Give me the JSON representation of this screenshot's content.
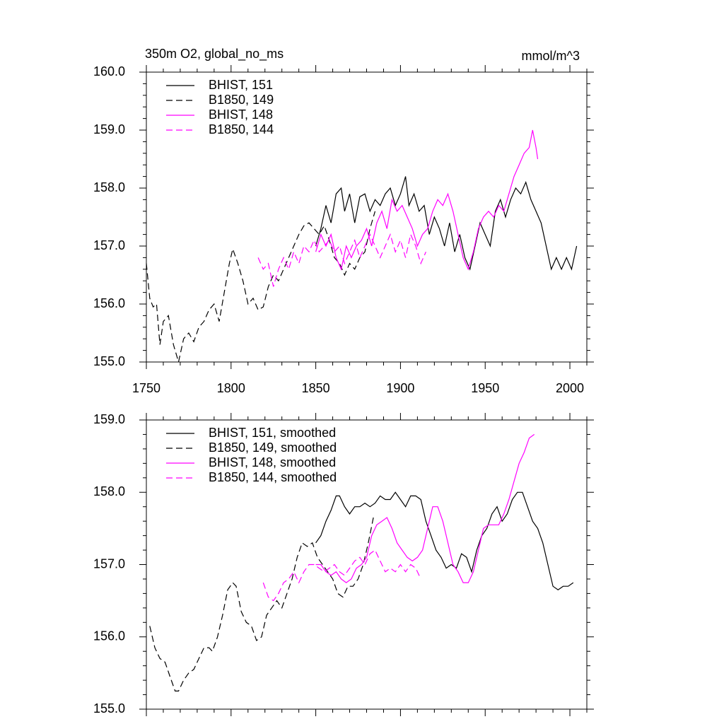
{
  "chart_data": [
    {
      "type": "line",
      "title": "350m O2, global_no_ms",
      "y_units": "mmol/m^3",
      "xlim": [
        1750,
        2010
      ],
      "xticks": [
        1750,
        1800,
        1850,
        1900,
        1950,
        2000
      ],
      "show_xtick_labels": true,
      "ylim": [
        155,
        160
      ],
      "yticks": [
        {
          "value": 155,
          "label": "155.0"
        },
        {
          "value": 156,
          "label": "156.0"
        },
        {
          "value": 157,
          "label": "157.0"
        },
        {
          "value": 158,
          "label": "158.0"
        },
        {
          "value": 159,
          "label": "159.0"
        },
        {
          "value": 160,
          "label": "160.0"
        }
      ],
      "legend": "upper left",
      "series": [
        {
          "name": "BHIST, 151",
          "color": "black",
          "line_style": "solid",
          "x": [
            1850,
            1853,
            1856,
            1859,
            1862,
            1865,
            1867,
            1870,
            1873,
            1876,
            1879,
            1882,
            1885,
            1888,
            1891,
            1894,
            1897,
            1900,
            1903,
            1905,
            1908,
            1911,
            1914,
            1917,
            1920,
            1923,
            1926,
            1929,
            1932,
            1935,
            1938,
            1941,
            1944,
            1947,
            1950,
            1953,
            1956,
            1959,
            1962,
            1965,
            1968,
            1971,
            1974,
            1977,
            1980,
            1983,
            1986,
            1989,
            1992,
            1995,
            1998,
            2001,
            2004
          ],
          "values": [
            157.0,
            157.3,
            157.7,
            157.4,
            157.9,
            158.0,
            157.6,
            157.9,
            157.4,
            157.85,
            157.9,
            157.6,
            157.8,
            157.7,
            157.9,
            158.0,
            157.7,
            157.9,
            158.2,
            157.7,
            157.9,
            157.6,
            157.7,
            157.2,
            157.5,
            157.3,
            157.0,
            157.4,
            156.9,
            157.2,
            156.8,
            156.6,
            157.0,
            157.4,
            157.2,
            157.0,
            157.6,
            157.8,
            157.5,
            157.8,
            158.0,
            157.9,
            158.1,
            157.8,
            157.6,
            157.4,
            157.0,
            156.6,
            156.8,
            156.6,
            156.8,
            156.6,
            157.0
          ]
        },
        {
          "name": "B1850, 149",
          "color": "black",
          "line_style": "dashed",
          "x": [
            1750,
            1752,
            1754,
            1756,
            1758,
            1760,
            1763,
            1766,
            1769,
            1772,
            1775,
            1778,
            1781,
            1784,
            1787,
            1790,
            1793,
            1796,
            1799,
            1801,
            1804,
            1807,
            1810,
            1813,
            1816,
            1819,
            1822,
            1825,
            1828,
            1831,
            1834,
            1837,
            1840,
            1843,
            1846,
            1849,
            1852,
            1855,
            1858,
            1861,
            1864,
            1867,
            1870,
            1873,
            1876,
            1879,
            1882,
            1885
          ],
          "values": [
            156.7,
            156.1,
            155.95,
            156.0,
            155.3,
            155.7,
            155.8,
            155.3,
            155.0,
            155.4,
            155.5,
            155.35,
            155.6,
            155.7,
            155.9,
            156.0,
            155.7,
            156.2,
            156.7,
            156.95,
            156.7,
            156.4,
            156.0,
            156.1,
            155.9,
            155.95,
            156.3,
            156.5,
            156.4,
            156.6,
            156.8,
            157.0,
            157.2,
            157.35,
            157.4,
            157.3,
            157.2,
            157.35,
            157.1,
            156.8,
            156.7,
            156.5,
            156.7,
            156.6,
            156.8,
            156.9,
            157.3,
            157.6
          ]
        },
        {
          "name": "BHIST, 148",
          "color": "magenta",
          "line_style": "solid",
          "x": [
            1850,
            1853,
            1856,
            1859,
            1862,
            1865,
            1868,
            1871,
            1874,
            1877,
            1880,
            1883,
            1886,
            1889,
            1892,
            1895,
            1898,
            1901,
            1904,
            1907,
            1910,
            1913,
            1916,
            1919,
            1922,
            1925,
            1928,
            1931,
            1934,
            1937,
            1940,
            1943,
            1946,
            1949,
            1952,
            1955,
            1958,
            1961,
            1964,
            1967,
            1970,
            1973,
            1976,
            1978,
            1980,
            1981
          ],
          "values": [
            156.9,
            157.2,
            157.0,
            157.2,
            156.8,
            156.6,
            157.0,
            156.8,
            157.0,
            157.1,
            157.3,
            157.0,
            157.4,
            157.6,
            157.3,
            157.8,
            157.6,
            157.7,
            157.5,
            157.3,
            157.0,
            157.2,
            157.3,
            157.6,
            157.8,
            157.7,
            157.9,
            157.6,
            157.2,
            156.8,
            156.6,
            156.9,
            157.3,
            157.5,
            157.6,
            157.5,
            157.7,
            157.6,
            157.9,
            158.2,
            158.4,
            158.6,
            158.7,
            159.0,
            158.7,
            158.5
          ]
        },
        {
          "name": "B1850, 144",
          "color": "magenta",
          "line_style": "dashed",
          "x": [
            1816,
            1819,
            1822,
            1825,
            1828,
            1831,
            1834,
            1837,
            1840,
            1843,
            1846,
            1849,
            1852,
            1855,
            1858,
            1861,
            1864,
            1867,
            1870,
            1873,
            1876,
            1879,
            1882,
            1885,
            1888,
            1891,
            1894,
            1897,
            1900,
            1903,
            1906,
            1909,
            1912,
            1915
          ],
          "values": [
            156.8,
            156.6,
            156.7,
            156.3,
            156.6,
            156.8,
            156.6,
            156.9,
            156.7,
            157.0,
            156.9,
            157.1,
            156.9,
            157.0,
            157.1,
            156.9,
            157.0,
            156.7,
            156.9,
            157.1,
            156.8,
            157.0,
            157.2,
            157.0,
            156.8,
            157.0,
            157.2,
            156.9,
            157.1,
            156.8,
            157.2,
            157.0,
            156.7,
            156.9
          ]
        }
      ]
    },
    {
      "type": "line",
      "xlim": [
        1750,
        2010
      ],
      "xticks": [
        1750,
        1800,
        1850,
        1900,
        1950,
        2000
      ],
      "show_xtick_labels": false,
      "ylim": [
        155,
        159
      ],
      "yticks": [
        {
          "value": 155,
          "label": "155.0"
        },
        {
          "value": 156,
          "label": "156.0"
        },
        {
          "value": 157,
          "label": "157.0"
        },
        {
          "value": 158,
          "label": "158.0"
        },
        {
          "value": 159,
          "label": "159.0"
        }
      ],
      "legend": "upper left",
      "series": [
        {
          "name": "BHIST, 151, smoothed",
          "color": "black",
          "line_style": "solid",
          "x": [
            1850,
            1853,
            1856,
            1859,
            1862,
            1864,
            1867,
            1870,
            1873,
            1876,
            1879,
            1882,
            1885,
            1888,
            1891,
            1894,
            1897,
            1900,
            1903,
            1906,
            1909,
            1912,
            1915,
            1918,
            1921,
            1924,
            1927,
            1930,
            1933,
            1936,
            1939,
            1942,
            1945,
            1948,
            1951,
            1954,
            1957,
            1960,
            1963,
            1966,
            1969,
            1972,
            1975,
            1978,
            1981,
            1984,
            1987,
            1990,
            1993,
            1996,
            1999,
            2002
          ],
          "values": [
            157.3,
            157.4,
            157.6,
            157.75,
            157.95,
            157.95,
            157.8,
            157.7,
            157.8,
            157.8,
            157.85,
            157.8,
            157.85,
            157.95,
            157.9,
            157.9,
            158.0,
            157.9,
            157.8,
            157.95,
            157.95,
            157.9,
            157.6,
            157.4,
            157.2,
            157.1,
            156.95,
            157.0,
            156.95,
            157.15,
            157.1,
            156.9,
            157.2,
            157.4,
            157.5,
            157.7,
            157.8,
            157.6,
            157.7,
            157.9,
            158.0,
            158.0,
            157.8,
            157.6,
            157.5,
            157.3,
            157.0,
            156.7,
            156.65,
            156.7,
            156.7,
            156.75
          ]
        },
        {
          "name": "B1850, 149, smoothed",
          "color": "black",
          "line_style": "dashed",
          "x": [
            1752,
            1755,
            1758,
            1761,
            1764,
            1767,
            1769,
            1772,
            1775,
            1778,
            1781,
            1784,
            1787,
            1789,
            1792,
            1795,
            1798,
            1801,
            1803,
            1806,
            1809,
            1812,
            1815,
            1818,
            1821,
            1824,
            1827,
            1830,
            1833,
            1836,
            1839,
            1842,
            1845,
            1848,
            1851,
            1854,
            1857,
            1860,
            1863,
            1866,
            1869,
            1872,
            1875,
            1878,
            1881,
            1884
          ],
          "values": [
            156.15,
            155.85,
            155.7,
            155.65,
            155.45,
            155.25,
            155.25,
            155.4,
            155.5,
            155.55,
            155.7,
            155.85,
            155.85,
            155.8,
            156.0,
            156.3,
            156.65,
            156.75,
            156.7,
            156.35,
            156.2,
            156.15,
            155.95,
            156.0,
            156.3,
            156.4,
            156.5,
            156.4,
            156.6,
            156.8,
            157.1,
            157.3,
            157.25,
            157.3,
            157.1,
            157.0,
            156.9,
            156.8,
            156.6,
            156.55,
            156.7,
            156.7,
            156.8,
            157.0,
            157.3,
            157.65
          ]
        },
        {
          "name": "BHIST, 148, smoothed",
          "color": "magenta",
          "line_style": "solid",
          "x": [
            1850,
            1853,
            1856,
            1859,
            1862,
            1865,
            1868,
            1871,
            1874,
            1877,
            1880,
            1883,
            1886,
            1889,
            1892,
            1895,
            1898,
            1901,
            1904,
            1907,
            1910,
            1913,
            1916,
            1919,
            1922,
            1925,
            1928,
            1931,
            1934,
            1937,
            1940,
            1943,
            1946,
            1949,
            1952,
            1955,
            1958,
            1961,
            1964,
            1967,
            1970,
            1973,
            1976,
            1979
          ],
          "values": [
            157.0,
            157.0,
            156.9,
            156.85,
            156.9,
            156.8,
            156.75,
            156.8,
            156.95,
            157.0,
            157.1,
            157.4,
            157.55,
            157.6,
            157.65,
            157.5,
            157.3,
            157.2,
            157.1,
            157.05,
            157.1,
            157.2,
            157.5,
            157.8,
            157.8,
            157.6,
            157.3,
            157.0,
            156.9,
            156.75,
            156.75,
            156.9,
            157.2,
            157.5,
            157.55,
            157.55,
            157.55,
            157.7,
            157.9,
            158.15,
            158.4,
            158.55,
            158.75,
            158.8
          ]
        },
        {
          "name": "B1850, 144, smoothed",
          "color": "magenta",
          "line_style": "dashed",
          "x": [
            1819,
            1822,
            1825,
            1828,
            1831,
            1834,
            1837,
            1840,
            1843,
            1846,
            1849,
            1852,
            1855,
            1858,
            1861,
            1864,
            1867,
            1870,
            1873,
            1876,
            1879,
            1882,
            1885,
            1888,
            1891,
            1894,
            1897,
            1900,
            1903,
            1906,
            1909,
            1912
          ],
          "values": [
            156.75,
            156.55,
            156.5,
            156.6,
            156.75,
            156.8,
            156.9,
            156.75,
            156.9,
            157.0,
            157.0,
            156.95,
            156.9,
            156.95,
            157.0,
            156.9,
            156.85,
            156.95,
            157.05,
            157.1,
            157.0,
            157.15,
            157.2,
            157.05,
            156.9,
            156.95,
            156.9,
            157.0,
            156.9,
            157.0,
            156.95,
            156.8
          ]
        }
      ]
    }
  ]
}
